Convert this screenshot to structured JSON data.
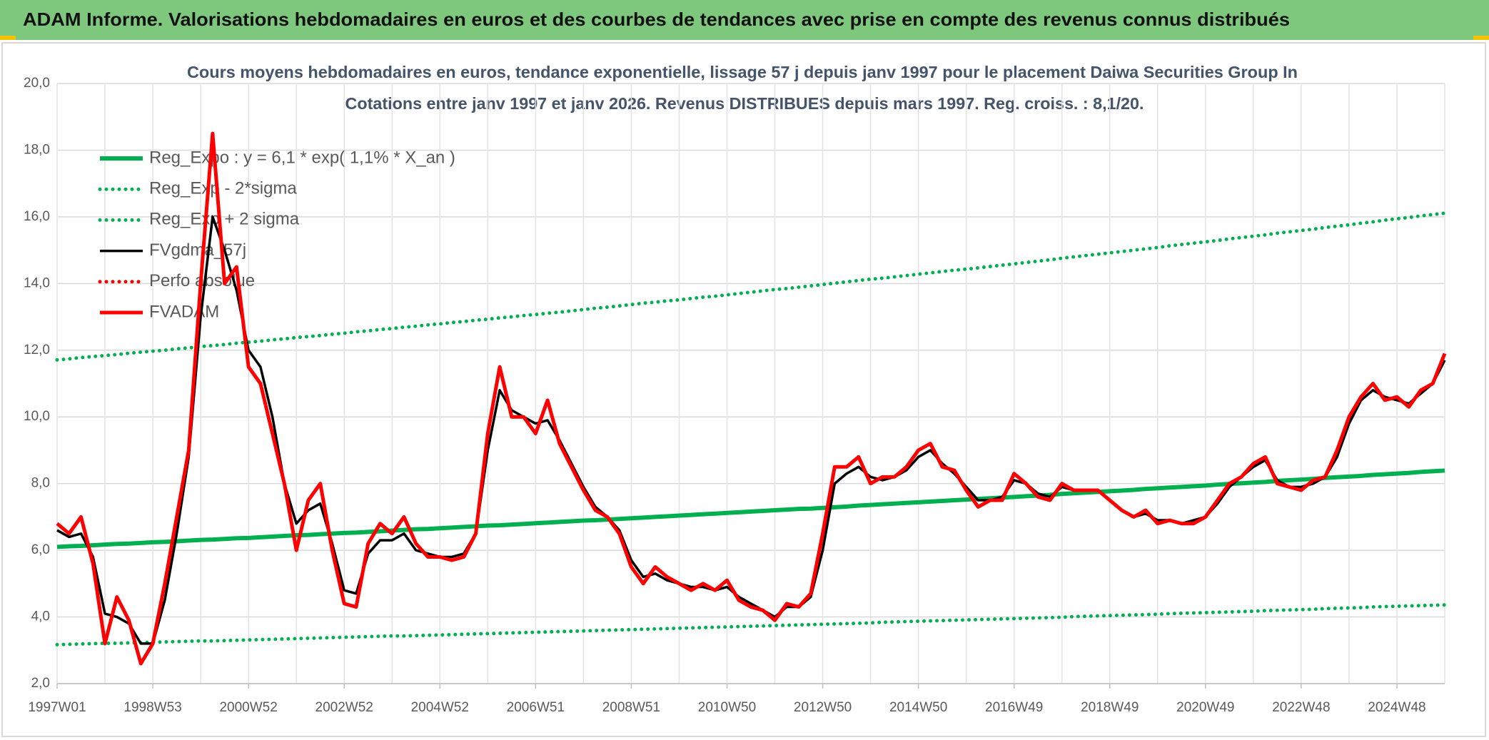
{
  "header": {
    "title": "ADAM Informe. Valorisations hebdomadaires en euros et des courbes de tendances avec prise en compte des revenus connus distribués"
  },
  "chart_data": {
    "type": "line",
    "title": "Cours moyens hebdomadaires en euros, tendance exponentielle, lissage 57 j depuis janv 1997 pour le placement Daiwa Securities Group In",
    "subtitle": "Cotations entre janv 1997 et janv 2026. Revenus DISTRIBUES depuis mars 1997. Reg. croiss. : 8,1/20.",
    "categories": [
      "1997W01",
      null,
      null,
      null,
      null,
      null,
      null,
      null,
      "1998W53",
      null,
      null,
      null,
      null,
      null,
      null,
      null,
      "2000W52",
      null,
      null,
      null,
      null,
      null,
      null,
      null,
      "2002W52",
      null,
      null,
      null,
      null,
      null,
      null,
      null,
      "2004W52",
      null,
      null,
      null,
      null,
      null,
      null,
      null,
      "2006W51",
      null,
      null,
      null,
      null,
      null,
      null,
      null,
      "2008W51",
      null,
      null,
      null,
      null,
      null,
      null,
      null,
      "2010W50",
      null,
      null,
      null,
      null,
      null,
      null,
      null,
      "2012W50",
      null,
      null,
      null,
      null,
      null,
      null,
      null,
      "2014W50",
      null,
      null,
      null,
      null,
      null,
      null,
      null,
      "2016W49",
      null,
      null,
      null,
      null,
      null,
      null,
      null,
      "2018W49",
      null,
      null,
      null,
      null,
      null,
      null,
      null,
      "2020W49",
      null,
      null,
      null,
      null,
      null,
      null,
      null,
      "2022W48",
      null,
      null,
      null,
      null,
      null,
      null,
      null,
      "2024W48",
      null,
      null,
      null,
      null
    ],
    "ylim": [
      2,
      20
    ],
    "yticks": [
      {
        "value": 2,
        "label": "2,0"
      },
      {
        "value": 4,
        "label": "4,0"
      },
      {
        "value": 6,
        "label": "6,0"
      },
      {
        "value": 8,
        "label": "8,0"
      },
      {
        "value": 10,
        "label": "10,0"
      },
      {
        "value": 12,
        "label": "12,0"
      },
      {
        "value": 14,
        "label": "14,0"
      },
      {
        "value": 16,
        "label": "16,0"
      },
      {
        "value": 18,
        "label": "18,0"
      },
      {
        "value": 20,
        "label": "20,0"
      }
    ],
    "grid": true,
    "legend": "top-left",
    "series": [
      {
        "name": "Reg_Expo : y = 6,1 * exp( 1,1% *  X_an )",
        "color": "#00b050",
        "style": "solid",
        "values": [
          6.1,
          6.12,
          6.13,
          6.15,
          6.17,
          6.19,
          6.2,
          6.22,
          6.24,
          6.25,
          6.27,
          6.29,
          6.31,
          6.32,
          6.34,
          6.36,
          6.37,
          6.39,
          6.41,
          6.43,
          6.45,
          6.46,
          6.48,
          6.5,
          6.52,
          6.53,
          6.55,
          6.57,
          6.59,
          6.61,
          6.63,
          6.64,
          6.66,
          6.68,
          6.7,
          6.72,
          6.74,
          6.75,
          6.77,
          6.79,
          6.81,
          6.83,
          6.85,
          6.87,
          6.89,
          6.9,
          6.92,
          6.94,
          6.96,
          6.98,
          7.0,
          7.02,
          7.04,
          7.06,
          7.08,
          7.1,
          7.12,
          7.14,
          7.16,
          7.18,
          7.2,
          7.22,
          7.24,
          7.25,
          7.27,
          7.29,
          7.31,
          7.34,
          7.36,
          7.38,
          7.4,
          7.42,
          7.44,
          7.46,
          7.48,
          7.5,
          7.52,
          7.54,
          7.56,
          7.58,
          7.6,
          7.62,
          7.64,
          7.66,
          7.69,
          7.71,
          7.73,
          7.75,
          7.77,
          7.79,
          7.81,
          7.84,
          7.86,
          7.88,
          7.9,
          7.92,
          7.94,
          7.97,
          7.99,
          8.01,
          8.03,
          8.05,
          8.08,
          8.1,
          8.12,
          8.14,
          8.17,
          8.19,
          8.21,
          8.23,
          8.26,
          8.28,
          8.3,
          8.32,
          8.35,
          8.37,
          8.39
        ]
      },
      {
        "name": "Reg_Exp - 2*sigma",
        "color": "#00b050",
        "style": "dotted",
        "values": [
          3.17,
          3.18,
          3.19,
          3.2,
          3.21,
          3.21,
          3.22,
          3.23,
          3.24,
          3.25,
          3.26,
          3.27,
          3.28,
          3.28,
          3.29,
          3.3,
          3.31,
          3.32,
          3.33,
          3.34,
          3.35,
          3.36,
          3.37,
          3.38,
          3.39,
          3.4,
          3.41,
          3.42,
          3.43,
          3.43,
          3.44,
          3.45,
          3.46,
          3.47,
          3.48,
          3.49,
          3.5,
          3.51,
          3.52,
          3.53,
          3.54,
          3.55,
          3.56,
          3.57,
          3.58,
          3.59,
          3.6,
          3.61,
          3.62,
          3.63,
          3.64,
          3.65,
          3.66,
          3.67,
          3.68,
          3.69,
          3.7,
          3.71,
          3.72,
          3.73,
          3.74,
          3.75,
          3.76,
          3.77,
          3.78,
          3.79,
          3.8,
          3.81,
          3.82,
          3.84,
          3.85,
          3.86,
          3.87,
          3.88,
          3.89,
          3.9,
          3.91,
          3.92,
          3.93,
          3.94,
          3.95,
          3.96,
          3.97,
          3.98,
          3.99,
          4.01,
          4.02,
          4.03,
          4.04,
          4.05,
          4.06,
          4.07,
          4.08,
          4.1,
          4.11,
          4.12,
          4.13,
          4.14,
          4.15,
          4.16,
          4.17,
          4.19,
          4.2,
          4.21,
          4.22,
          4.23,
          4.25,
          4.26,
          4.27,
          4.28,
          4.3,
          4.31,
          4.32,
          4.33,
          4.34,
          4.35,
          4.36
        ]
      },
      {
        "name": "Reg_Exp + 2 sigma",
        "color": "#00b050",
        "style": "dotted",
        "values": [
          11.71,
          11.74,
          11.78,
          11.81,
          11.84,
          11.87,
          11.91,
          11.94,
          11.97,
          12.0,
          12.04,
          12.07,
          12.11,
          12.14,
          12.17,
          12.21,
          12.24,
          12.27,
          12.31,
          12.34,
          12.38,
          12.41,
          12.44,
          12.48,
          12.51,
          12.55,
          12.58,
          12.62,
          12.65,
          12.69,
          12.72,
          12.76,
          12.79,
          12.83,
          12.86,
          12.9,
          12.93,
          12.97,
          13.0,
          13.04,
          13.07,
          13.11,
          13.14,
          13.18,
          13.22,
          13.26,
          13.29,
          13.33,
          13.37,
          13.41,
          13.44,
          13.48,
          13.51,
          13.55,
          13.59,
          13.62,
          13.66,
          13.7,
          13.74,
          13.78,
          13.82,
          13.85,
          13.89,
          13.93,
          13.97,
          14.01,
          14.05,
          14.09,
          14.13,
          14.16,
          14.2,
          14.24,
          14.28,
          14.32,
          14.36,
          14.4,
          14.43,
          14.47,
          14.51,
          14.55,
          14.59,
          14.63,
          14.67,
          14.71,
          14.76,
          14.8,
          14.84,
          14.88,
          14.92,
          14.96,
          15.0,
          15.04,
          15.08,
          15.13,
          15.17,
          15.21,
          15.25,
          15.29,
          15.34,
          15.38,
          15.42,
          15.46,
          15.51,
          15.55,
          15.59,
          15.63,
          15.68,
          15.72,
          15.76,
          15.81,
          15.85,
          15.9,
          15.94,
          15.98,
          16.03,
          16.07,
          16.11
        ]
      },
      {
        "name": "FVgdma_57j",
        "color": "#000000",
        "style": "solid",
        "values": [
          6.6,
          6.4,
          6.5,
          5.8,
          4.1,
          4.0,
          3.8,
          3.2,
          3.2,
          4.5,
          6.5,
          8.8,
          13,
          16,
          15,
          13.8,
          12,
          11.5,
          10,
          8,
          6.8,
          7.2,
          7.4,
          6.2,
          4.8,
          4.7,
          5.9,
          6.3,
          6.3,
          6.5,
          6.0,
          5.9,
          5.8,
          5.8,
          5.9,
          6.5,
          9.0,
          10.8,
          10.2,
          10.0,
          9.8,
          9.9,
          9.3,
          8.6,
          7.9,
          7.3,
          7.0,
          6.6,
          5.7,
          5.2,
          5.3,
          5.1,
          5.0,
          4.9,
          4.9,
          4.8,
          4.9,
          4.6,
          4.4,
          4.2,
          4.0,
          4.3,
          4.3,
          4.6,
          6.0,
          8.0,
          8.3,
          8.5,
          8.2,
          8.1,
          8.2,
          8.4,
          8.8,
          9.0,
          8.6,
          8.3,
          7.9,
          7.5,
          7.5,
          7.6,
          8.1,
          8.0,
          7.7,
          7.6,
          7.9,
          7.8,
          7.8,
          7.8,
          7.5,
          7.2,
          7.0,
          7.1,
          6.9,
          6.9,
          6.8,
          6.9,
          7.0,
          7.4,
          7.9,
          8.2,
          8.5,
          8.7,
          8.1,
          7.9,
          7.9,
          8.0,
          8.2,
          8.8,
          9.8,
          10.5,
          10.8,
          10.6,
          10.5,
          10.4,
          10.7,
          11.0,
          11.7
        ]
      },
      {
        "name": "Perfo absolue",
        "color": "#ff0000",
        "style": "dotted",
        "values": [
          null,
          null,
          null,
          null,
          null,
          null,
          null,
          null,
          null,
          null,
          null,
          null,
          null,
          null,
          null,
          null,
          null,
          null,
          null,
          null,
          null,
          null,
          null,
          null,
          null,
          null,
          null,
          null,
          null,
          null,
          null,
          null,
          null,
          null,
          null,
          null,
          null,
          null,
          null,
          null,
          null,
          null,
          null,
          null,
          null,
          null,
          null,
          null,
          null,
          null,
          null,
          null,
          null,
          null,
          null,
          null,
          null,
          null,
          null,
          null,
          null,
          null,
          null,
          null,
          null,
          null,
          null,
          null,
          null,
          null,
          null,
          null,
          null,
          null,
          null,
          null,
          null,
          null,
          null,
          null,
          null,
          null,
          null,
          null,
          null,
          null,
          null,
          null,
          null,
          null,
          null,
          null,
          null,
          null,
          null,
          null,
          null,
          null,
          null,
          null,
          null,
          null,
          null,
          null,
          null,
          null,
          null,
          null,
          null,
          null,
          null,
          null,
          null,
          null,
          null,
          null,
          null
        ]
      },
      {
        "name": "FVADAM",
        "color": "#ff0000",
        "style": "solid",
        "values": [
          6.8,
          6.5,
          7.0,
          5.6,
          3.2,
          4.6,
          3.9,
          2.6,
          3.2,
          5.0,
          7.0,
          9.0,
          14,
          18.5,
          14,
          14.5,
          11.5,
          11,
          9.5,
          8.0,
          6.0,
          7.5,
          8.0,
          6.0,
          4.4,
          4.3,
          6.2,
          6.8,
          6.5,
          7.0,
          6.2,
          5.8,
          5.8,
          5.7,
          5.8,
          6.5,
          9.5,
          11.5,
          10.0,
          10.0,
          9.5,
          10.5,
          9.2,
          8.5,
          7.8,
          7.2,
          7.0,
          6.5,
          5.5,
          5.0,
          5.5,
          5.2,
          5.0,
          4.8,
          5.0,
          4.8,
          5.1,
          4.5,
          4.3,
          4.2,
          3.9,
          4.4,
          4.3,
          4.7,
          6.5,
          8.5,
          8.5,
          8.8,
          8.0,
          8.2,
          8.2,
          8.5,
          9.0,
          9.2,
          8.5,
          8.4,
          7.8,
          7.3,
          7.5,
          7.5,
          8.3,
          8.0,
          7.6,
          7.5,
          8.0,
          7.8,
          7.8,
          7.8,
          7.5,
          7.2,
          7.0,
          7.2,
          6.8,
          6.9,
          6.8,
          6.8,
          7.0,
          7.5,
          8.0,
          8.2,
          8.6,
          8.8,
          8.0,
          7.9,
          7.8,
          8.1,
          8.2,
          9.0,
          10.0,
          10.6,
          11.0,
          10.5,
          10.6,
          10.3,
          10.8,
          11.0,
          11.9
        ]
      }
    ]
  }
}
